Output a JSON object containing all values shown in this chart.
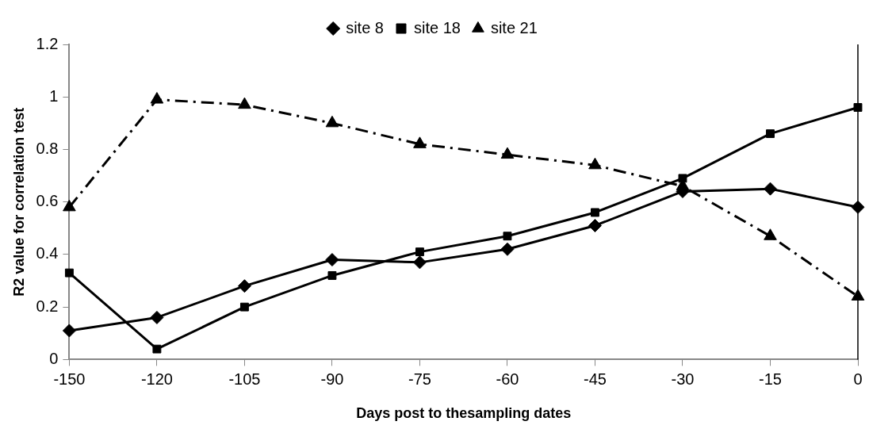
{
  "chart_data": {
    "type": "line",
    "xlabel": "Days post to thesampling dates",
    "ylabel": "R2 value for correlation test",
    "categories": [
      "-150",
      "-120",
      "-105",
      "-90",
      "-75",
      "-60",
      "-45",
      "-30",
      "-15",
      "0"
    ],
    "ylim": [
      0,
      1.2
    ],
    "yticks": [
      0,
      0.2,
      0.4,
      0.6,
      0.8,
      1,
      1.2
    ],
    "grid": false,
    "legend": "top",
    "series": [
      {
        "name": "site 8",
        "color": "#000000",
        "marker": "diamond",
        "line_style": "solid",
        "values": [
          0.11,
          0.16,
          0.28,
          0.38,
          0.37,
          0.42,
          0.51,
          0.64,
          0.65,
          0.58
        ]
      },
      {
        "name": "site 18",
        "color": "#000000",
        "marker": "square",
        "line_style": "solid",
        "values": [
          0.33,
          0.04,
          0.2,
          0.32,
          0.41,
          0.47,
          0.56,
          0.69,
          0.86,
          0.96
        ]
      },
      {
        "name": "site 21",
        "color": "#000000",
        "marker": "triangle",
        "line_style": "dashdot",
        "values": [
          0.58,
          0.99,
          0.97,
          0.9,
          0.82,
          0.78,
          0.74,
          0.66,
          0.47,
          0.24
        ]
      }
    ]
  }
}
